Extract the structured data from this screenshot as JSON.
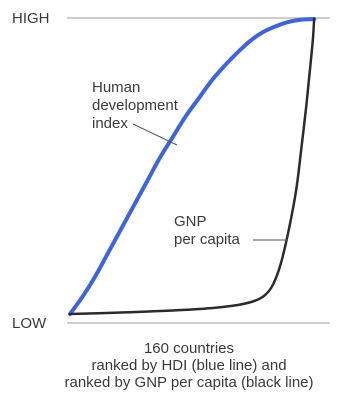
{
  "chart_data": {
    "type": "line",
    "title": "",
    "xlabel": "",
    "ylabel": "",
    "y_axis_labels": {
      "high": "HIGH",
      "low": "LOW"
    },
    "caption": [
      "160 countries",
      "ranked by HDI (blue line) and",
      "ranked by GNP per capita (black line)"
    ],
    "x_range": [
      0,
      1
    ],
    "y_range": [
      0,
      1
    ],
    "grid": false,
    "series": [
      {
        "name": "Human development index",
        "label_lines": [
          "Human",
          "development",
          "index"
        ],
        "color": "#3f64d6",
        "points": [
          [
            0.0,
            0.0
          ],
          [
            0.05,
            0.06
          ],
          [
            0.1,
            0.13
          ],
          [
            0.15,
            0.21
          ],
          [
            0.2,
            0.29
          ],
          [
            0.25,
            0.37
          ],
          [
            0.3,
            0.45
          ],
          [
            0.35,
            0.53
          ],
          [
            0.4,
            0.6
          ],
          [
            0.45,
            0.67
          ],
          [
            0.5,
            0.73
          ],
          [
            0.55,
            0.79
          ],
          [
            0.6,
            0.84
          ],
          [
            0.65,
            0.885
          ],
          [
            0.7,
            0.925
          ],
          [
            0.75,
            0.955
          ],
          [
            0.8,
            0.975
          ],
          [
            0.85,
            0.99
          ],
          [
            0.9,
            0.998
          ],
          [
            0.95,
            1.0
          ]
        ]
      },
      {
        "name": "GNP per capita",
        "label_lines": [
          "GNP",
          "per capita"
        ],
        "color": "#2b2b2b",
        "points": [
          [
            0.0,
            0.0
          ],
          [
            0.2,
            0.005
          ],
          [
            0.4,
            0.012
          ],
          [
            0.55,
            0.02
          ],
          [
            0.65,
            0.03
          ],
          [
            0.72,
            0.045
          ],
          [
            0.76,
            0.065
          ],
          [
            0.79,
            0.1
          ],
          [
            0.82,
            0.17
          ],
          [
            0.85,
            0.28
          ],
          [
            0.88,
            0.42
          ],
          [
            0.9,
            0.56
          ],
          [
            0.92,
            0.71
          ],
          [
            0.935,
            0.84
          ],
          [
            0.945,
            0.93
          ],
          [
            0.95,
            1.0
          ]
        ]
      }
    ]
  }
}
